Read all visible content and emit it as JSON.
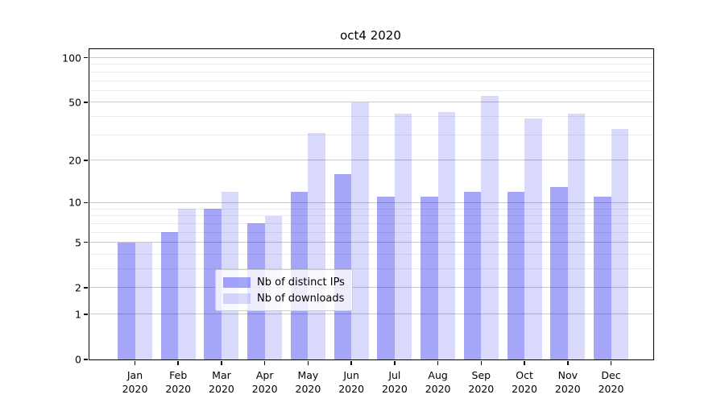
{
  "title": "oct4 2020",
  "legend": {
    "items": [
      {
        "label": "Nb of distinct IPs",
        "color": "#a6a6f7",
        "color_rgba": "rgba(0,0,238,0.35)"
      },
      {
        "label": "Nb of downloads",
        "color": "#d9d9fc",
        "color_rgba": "rgba(0,0,238,0.15)"
      }
    ]
  },
  "axes": {
    "y_major_ticks": [
      100,
      50,
      20,
      10,
      5,
      2,
      1,
      0
    ],
    "y_minor_gridlines": [
      3,
      4,
      6,
      7,
      8,
      9,
      30,
      40,
      60,
      70,
      80,
      90
    ],
    "x_tick_months": [
      "Jan",
      "Feb",
      "Mar",
      "Apr",
      "May",
      "Jun",
      "Jul",
      "Aug",
      "Sep",
      "Oct",
      "Nov",
      "Dec"
    ],
    "x_tick_year": "2020"
  },
  "chart_data": {
    "type": "bar",
    "title": "oct4 2020",
    "categories": [
      "Jan 2020",
      "Feb 2020",
      "Mar 2020",
      "Apr 2020",
      "May 2020",
      "Jun 2020",
      "Jul 2020",
      "Aug 2020",
      "Sep 2020",
      "Oct 2020",
      "Nov 2020",
      "Dec 2020"
    ],
    "series": [
      {
        "name": "Nb of distinct IPs",
        "color": "#a6a6f7",
        "color_rgba": "rgba(0,0,238,0.35)",
        "values": [
          5,
          6,
          9,
          7,
          12,
          16,
          11,
          11,
          12,
          12,
          13,
          11
        ]
      },
      {
        "name": "Nb of downloads",
        "color": "#d9d9fc",
        "color_rgba": "rgba(0,0,238,0.15)",
        "values": [
          5,
          9,
          12,
          8,
          31,
          50,
          42,
          43,
          55,
          39,
          42,
          33
        ]
      }
    ],
    "xlabel": "",
    "ylabel": "",
    "yscale": "log1p (y proportional to log10(1+value); tick labels 0,1,2,5,10,20,50,100)",
    "ylim": [
      0,
      114
    ],
    "grid": true,
    "legend_position": "lower center"
  }
}
